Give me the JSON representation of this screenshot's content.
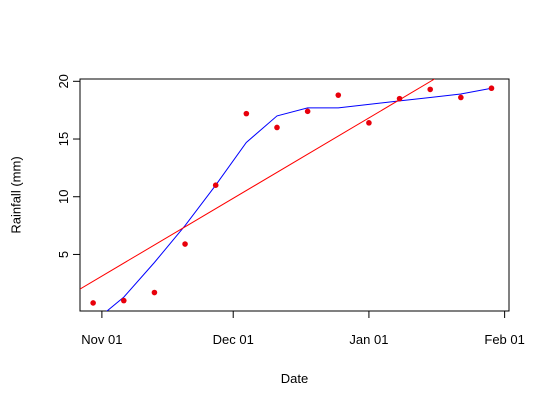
{
  "chart_data": {
    "type": "scatter",
    "title": "",
    "xlabel": "Date",
    "ylabel": "Rainfall (mm)",
    "x_tick_labels": [
      "Nov 01",
      "Dec 01",
      "Jan 01",
      "Feb 01"
    ],
    "x_tick_values": [
      "2023-11-01",
      "2023-12-01",
      "2024-01-01",
      "2024-02-01"
    ],
    "y_tick_values": [
      5,
      10,
      15,
      20
    ],
    "xlim": [
      "2023-10-27",
      "2024-02-02"
    ],
    "ylim": [
      0.1,
      20.2
    ],
    "grid": false,
    "points": {
      "color": "#e8000b",
      "x": [
        "2023-10-30",
        "2023-11-06",
        "2023-11-13",
        "2023-11-20",
        "2023-11-27",
        "2023-12-04",
        "2023-12-11",
        "2023-12-18",
        "2023-12-25",
        "2024-01-01",
        "2024-01-08",
        "2024-01-15",
        "2024-01-22",
        "2024-01-29"
      ],
      "y": [
        0.8,
        1.0,
        1.7,
        5.9,
        11.0,
        17.2,
        16.0,
        17.4,
        18.8,
        16.4,
        18.5,
        19.3,
        18.6,
        19.4
      ]
    },
    "smooth_line": {
      "color": "#0000ff",
      "x": [
        "2023-10-30",
        "2023-11-06",
        "2023-11-13",
        "2023-11-20",
        "2023-11-27",
        "2023-12-04",
        "2023-12-11",
        "2023-12-18",
        "2023-12-25",
        "2024-01-01",
        "2024-01-08",
        "2024-01-15",
        "2024-01-22",
        "2024-01-29"
      ],
      "y": [
        -0.9,
        1.3,
        4.3,
        7.5,
        11.0,
        14.7,
        17.0,
        17.7,
        17.7,
        18.0,
        18.3,
        18.6,
        18.9,
        19.4
      ]
    },
    "trend_line": {
      "color": "#ff0000",
      "x": [
        "2023-10-27",
        "2024-01-16"
      ],
      "y": [
        2.0,
        20.2
      ]
    }
  }
}
